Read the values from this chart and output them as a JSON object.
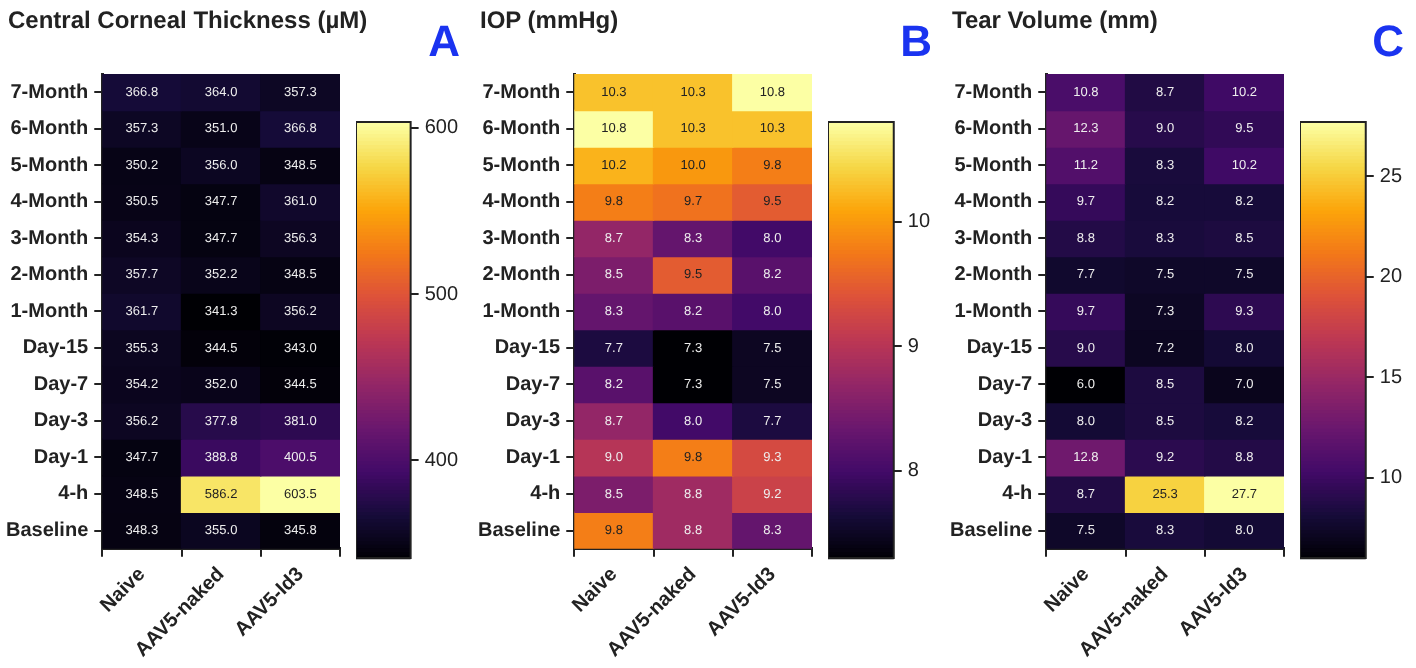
{
  "chart_data": [
    {
      "type": "heatmap",
      "title": "Central Corneal Thickness (µM)",
      "annotations": [
        "A"
      ],
      "data_labels": true,
      "categories": [
        "Naive",
        "AAV5-naked",
        "AAV5-Id3"
      ],
      "y_categories": [
        "7-Month",
        "6-Month",
        "5-Month",
        "4-Month",
        "3-Month",
        "2-Month",
        "1-Month",
        "Day-15",
        "Day-7",
        "Day-3",
        "Day-1",
        "4-h",
        "Baseline"
      ],
      "cells": [
        [
          366.8,
          364.0,
          357.3
        ],
        [
          357.3,
          351.0,
          366.8
        ],
        [
          350.2,
          356.0,
          348.5
        ],
        [
          350.5,
          347.7,
          361.0
        ],
        [
          354.3,
          347.7,
          356.3
        ],
        [
          357.7,
          352.2,
          348.5
        ],
        [
          361.7,
          341.3,
          356.2
        ],
        [
          355.3,
          344.5,
          343.0
        ],
        [
          354.2,
          352.0,
          344.5
        ],
        [
          356.2,
          377.8,
          381.0
        ],
        [
          347.7,
          388.8,
          400.5
        ],
        [
          348.5,
          586.2,
          603.5
        ],
        [
          348.3,
          355.0,
          345.8
        ]
      ],
      "cell_labels": [
        [
          "366.8",
          "364.0",
          "357.3"
        ],
        [
          "357.3",
          "351.0",
          "366.8"
        ],
        [
          "350.2",
          "356.0",
          "348.5"
        ],
        [
          "350.5",
          "347.7",
          "361.0"
        ],
        [
          "354.3",
          "347.7",
          "356.3"
        ],
        [
          "357.7",
          "352.2",
          "348.5"
        ],
        [
          "361.7",
          "341.3",
          "356.2"
        ],
        [
          "355.3",
          "344.5",
          "343.0"
        ],
        [
          "354.2",
          "352.0",
          "344.5"
        ],
        [
          "356.2",
          "377.8",
          "381.0"
        ],
        [
          "347.7",
          "388.8",
          "400.5"
        ],
        [
          "348.5",
          "586.2",
          "603.5"
        ],
        [
          "348.3",
          "355.0",
          "345.8"
        ]
      ],
      "clim": [
        341.3,
        603.5
      ],
      "cticks": [
        400,
        500,
        600
      ]
    },
    {
      "type": "heatmap",
      "title": "IOP (mmHg)",
      "annotations": [
        "B"
      ],
      "data_labels": true,
      "categories": [
        "Naive",
        "AAV5-naked",
        "AAV5-Id3"
      ],
      "y_categories": [
        "7-Month",
        "6-Month",
        "5-Month",
        "4-Month",
        "3-Month",
        "2-Month",
        "1-Month",
        "Day-15",
        "Day-7",
        "Day-3",
        "Day-1",
        "4-h",
        "Baseline"
      ],
      "cells": [
        [
          10.3,
          10.3,
          10.8
        ],
        [
          10.8,
          10.3,
          10.3
        ],
        [
          10.2,
          10.0,
          9.8
        ],
        [
          9.8,
          9.7,
          9.5
        ],
        [
          8.7,
          8.3,
          8.0
        ],
        [
          8.5,
          9.5,
          8.2
        ],
        [
          8.3,
          8.2,
          8.0
        ],
        [
          7.7,
          7.3,
          7.5
        ],
        [
          8.2,
          7.3,
          7.5
        ],
        [
          8.7,
          8.0,
          7.7
        ],
        [
          9.0,
          9.8,
          9.3
        ],
        [
          8.5,
          8.8,
          9.2
        ],
        [
          9.8,
          8.8,
          8.3
        ]
      ],
      "cell_labels": [
        [
          "10.3",
          "10.3",
          "10.8"
        ],
        [
          "10.8",
          "10.3",
          "10.3"
        ],
        [
          "10.2",
          "10.0",
          "9.8"
        ],
        [
          "9.8",
          "9.7",
          "9.5"
        ],
        [
          "8.7",
          "8.3",
          "8.0"
        ],
        [
          "8.5",
          "9.5",
          "8.2"
        ],
        [
          "8.3",
          "8.2",
          "8.0"
        ],
        [
          "7.7",
          "7.3",
          "7.5"
        ],
        [
          "8.2",
          "7.3",
          "7.5"
        ],
        [
          "8.7",
          "8.0",
          "7.7"
        ],
        [
          "9.0",
          "9.8",
          "9.3"
        ],
        [
          "8.5",
          "8.8",
          "9.2"
        ],
        [
          "9.8",
          "8.8",
          "8.3"
        ]
      ],
      "clim": [
        7.3,
        10.8
      ],
      "cticks": [
        8,
        9,
        10
      ]
    },
    {
      "type": "heatmap",
      "title": "Tear Volume (mm)",
      "annotations": [
        "C"
      ],
      "data_labels": true,
      "categories": [
        "Naive",
        "AAV5-naked",
        "AAV5-Id3"
      ],
      "y_categories": [
        "7-Month",
        "6-Month",
        "5-Month",
        "4-Month",
        "3-Month",
        "2-Month",
        "1-Month",
        "Day-15",
        "Day-7",
        "Day-3",
        "Day-1",
        "4-h",
        "Baseline"
      ],
      "cells": [
        [
          10.8,
          8.7,
          10.2
        ],
        [
          12.3,
          9.0,
          9.5
        ],
        [
          11.2,
          8.3,
          10.2
        ],
        [
          9.7,
          8.2,
          8.2
        ],
        [
          8.8,
          8.3,
          8.5
        ],
        [
          7.7,
          7.5,
          7.5
        ],
        [
          9.7,
          7.3,
          9.3
        ],
        [
          9.0,
          7.2,
          8.0
        ],
        [
          6.0,
          8.5,
          7.0
        ],
        [
          8.0,
          8.5,
          8.2
        ],
        [
          12.8,
          9.2,
          8.8
        ],
        [
          8.7,
          25.3,
          27.7
        ],
        [
          7.5,
          8.3,
          8.0
        ]
      ],
      "cell_labels": [
        [
          "10.8",
          "8.7",
          "10.2"
        ],
        [
          "12.3",
          "9.0",
          "9.5"
        ],
        [
          "11.2",
          "8.3",
          "10.2"
        ],
        [
          "9.7",
          "8.2",
          "8.2"
        ],
        [
          "8.8",
          "8.3",
          "8.5"
        ],
        [
          "7.7",
          "7.5",
          "7.5"
        ],
        [
          "9.7",
          "7.3",
          "9.3"
        ],
        [
          "9.0",
          "7.2",
          "8.0"
        ],
        [
          "6.0",
          "8.5",
          "7.0"
        ],
        [
          "8.0",
          "8.5",
          "8.2"
        ],
        [
          "12.8",
          "9.2",
          "8.8"
        ],
        [
          "8.7",
          "25.3",
          "27.7"
        ],
        [
          "7.5",
          "8.3",
          "8.0"
        ]
      ],
      "clim": [
        6.0,
        27.7
      ],
      "cticks": [
        10,
        15,
        20,
        25
      ]
    }
  ]
}
